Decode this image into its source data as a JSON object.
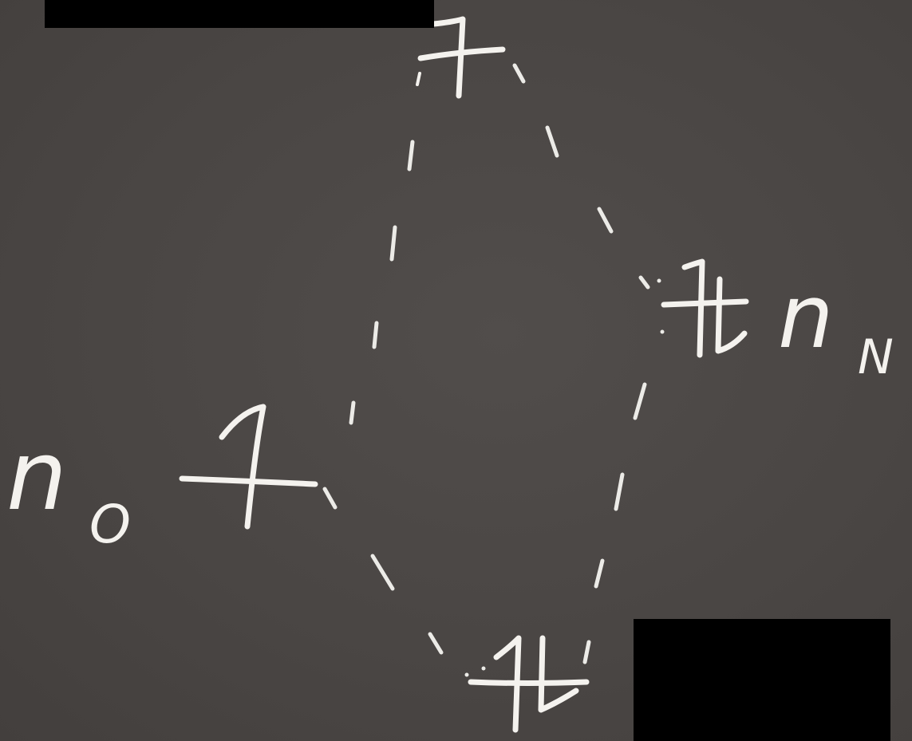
{
  "diagram": {
    "labels": {
      "left_orbital_base": "n",
      "left_orbital_sub": "O",
      "right_orbital_base": "n",
      "right_orbital_sub": "N"
    },
    "levels": {
      "antibonding": {
        "electrons": 1,
        "spin": "up"
      },
      "left_atomic": {
        "electrons": 1,
        "spin": "up"
      },
      "right_atomic": {
        "electrons": 2,
        "spin": "paired"
      },
      "bonding": {
        "electrons": 2,
        "spin": "paired"
      }
    },
    "colors": {
      "board": "#4a4644",
      "chalk": "#f4f2ee",
      "redaction": "#000000"
    }
  }
}
